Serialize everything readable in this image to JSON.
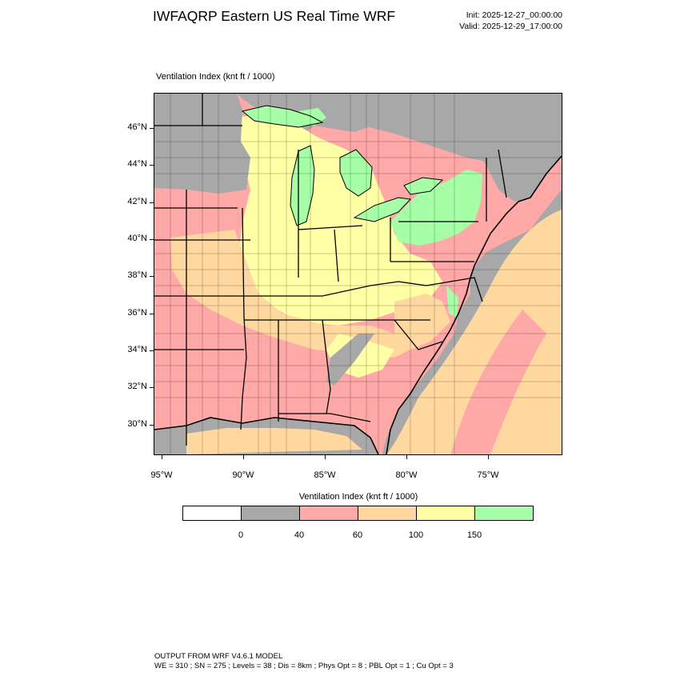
{
  "header": {
    "title": "IWFAQRP Eastern US Real Time WRF",
    "init": "Init: 2025-12-27_00:00:00",
    "valid": "Valid: 2025-12-29_17:00:00"
  },
  "map": {
    "subtitle": "Ventilation Index   (knt ft / 1000)",
    "lat_labels": [
      "46°N",
      "44°N",
      "42°N",
      "40°N",
      "38°N",
      "36°N",
      "34°N",
      "32°N",
      "30°N"
    ],
    "lon_labels": [
      "95°W",
      "90°W",
      "85°W",
      "80°W",
      "75°W"
    ],
    "colors": {
      "ocean": "#a8a8a8",
      "lake": "#a6ffa6",
      "lt40": "#a8a8a8",
      "r40_60": "#ffa8a8",
      "r60_100": "#ffd8a0",
      "r100_150": "#ffffa6",
      "gt150": "#a6ffa6",
      "border": "#000000"
    }
  },
  "colorbar": {
    "title": "Ventilation Index  (knt ft / 1000)",
    "segment_colors": [
      "#ffffff",
      "#a8a8a8",
      "#ffa8a8",
      "#ffd8a0",
      "#ffffa6",
      "#a6ffa6"
    ],
    "labels": [
      "0",
      "40",
      "60",
      "100",
      "150"
    ]
  },
  "footer": {
    "line1": "OUTPUT FROM WRF V4.6.1 MODEL",
    "line2": "WE = 310 ; SN = 275 ; Levels = 38 ; Dis = 8km ; Phys Opt = 8 ; PBL Opt = 1 ; Cu Opt = 3"
  }
}
